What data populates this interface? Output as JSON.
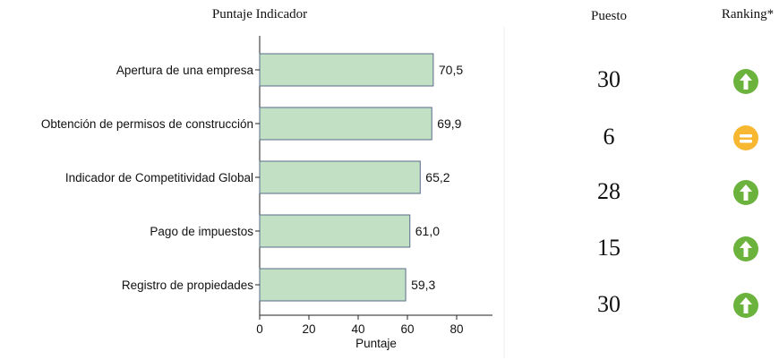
{
  "header": {
    "chart_title": "Puntaje Indicador",
    "puesto_label": "Puesto",
    "ranking_label": "Ranking*"
  },
  "chart_data": {
    "type": "bar",
    "orientation": "horizontal",
    "title": "Puntaje Indicador",
    "xlabel": "Puntaje",
    "ylabel": "",
    "xlim": [
      0,
      95
    ],
    "xticks": [
      0,
      20,
      40,
      60,
      80
    ],
    "categories": [
      "Apertura de una empresa",
      "Obtención de permisos de construcción",
      "Indicador de Competitividad Global",
      "Pago de impuestos",
      "Registro de propiedades"
    ],
    "values": [
      70.5,
      69.9,
      65.2,
      61.0,
      59.3
    ],
    "value_labels": [
      "70,5",
      "69,9",
      "65,2",
      "61,0",
      "59,3"
    ],
    "bar_color": "#c2e0c3",
    "bar_edge_color": "#5a6b8a",
    "grid": false
  },
  "table": {
    "rows": [
      {
        "puesto": "30",
        "ranking": "up"
      },
      {
        "puesto": "6",
        "ranking": "equal"
      },
      {
        "puesto": "28",
        "ranking": "up"
      },
      {
        "puesto": "15",
        "ranking": "up"
      },
      {
        "puesto": "30",
        "ranking": "up"
      }
    ]
  },
  "colors": {
    "up": "#6cb33e",
    "equal": "#f7b731"
  },
  "icons": {
    "up": "arrow-up-icon",
    "equal": "equal-icon"
  }
}
